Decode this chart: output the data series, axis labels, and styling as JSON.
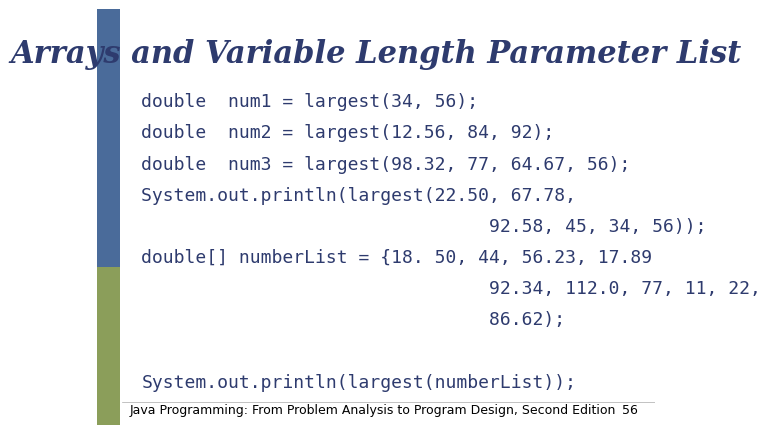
{
  "title": "Arrays and Variable Length Parameter List",
  "title_color": "#2E3B6E",
  "title_fontsize": 22,
  "bg_color": "#FFFFFF",
  "code_lines": [
    "double  num1 = largest(34, 56);",
    "double  num2 = largest(12.56, 84, 92);",
    "double  num3 = largest(98.32, 77, 64.67, 56);",
    "System.out.println(largest(22.50, 67.78,",
    "                                92.58, 45, 34, 56));",
    "double[] numberList = {18. 50, 44, 56.23, 17.89",
    "                                92.34, 112.0, 77, 11, 22,",
    "                                86.62);",
    "",
    "System.out.println(largest(numberList));"
  ],
  "code_color": "#2E3B6E",
  "code_fontsize": 13,
  "footer_text": "Java Programming: From Problem Analysis to Program Design, Second Edition",
  "footer_page": "56",
  "footer_color": "#000000",
  "footer_fontsize": 9,
  "bar_blue": "#4A6B9A",
  "bar_olive": "#8B9E5A",
  "bar_width": 0.042
}
